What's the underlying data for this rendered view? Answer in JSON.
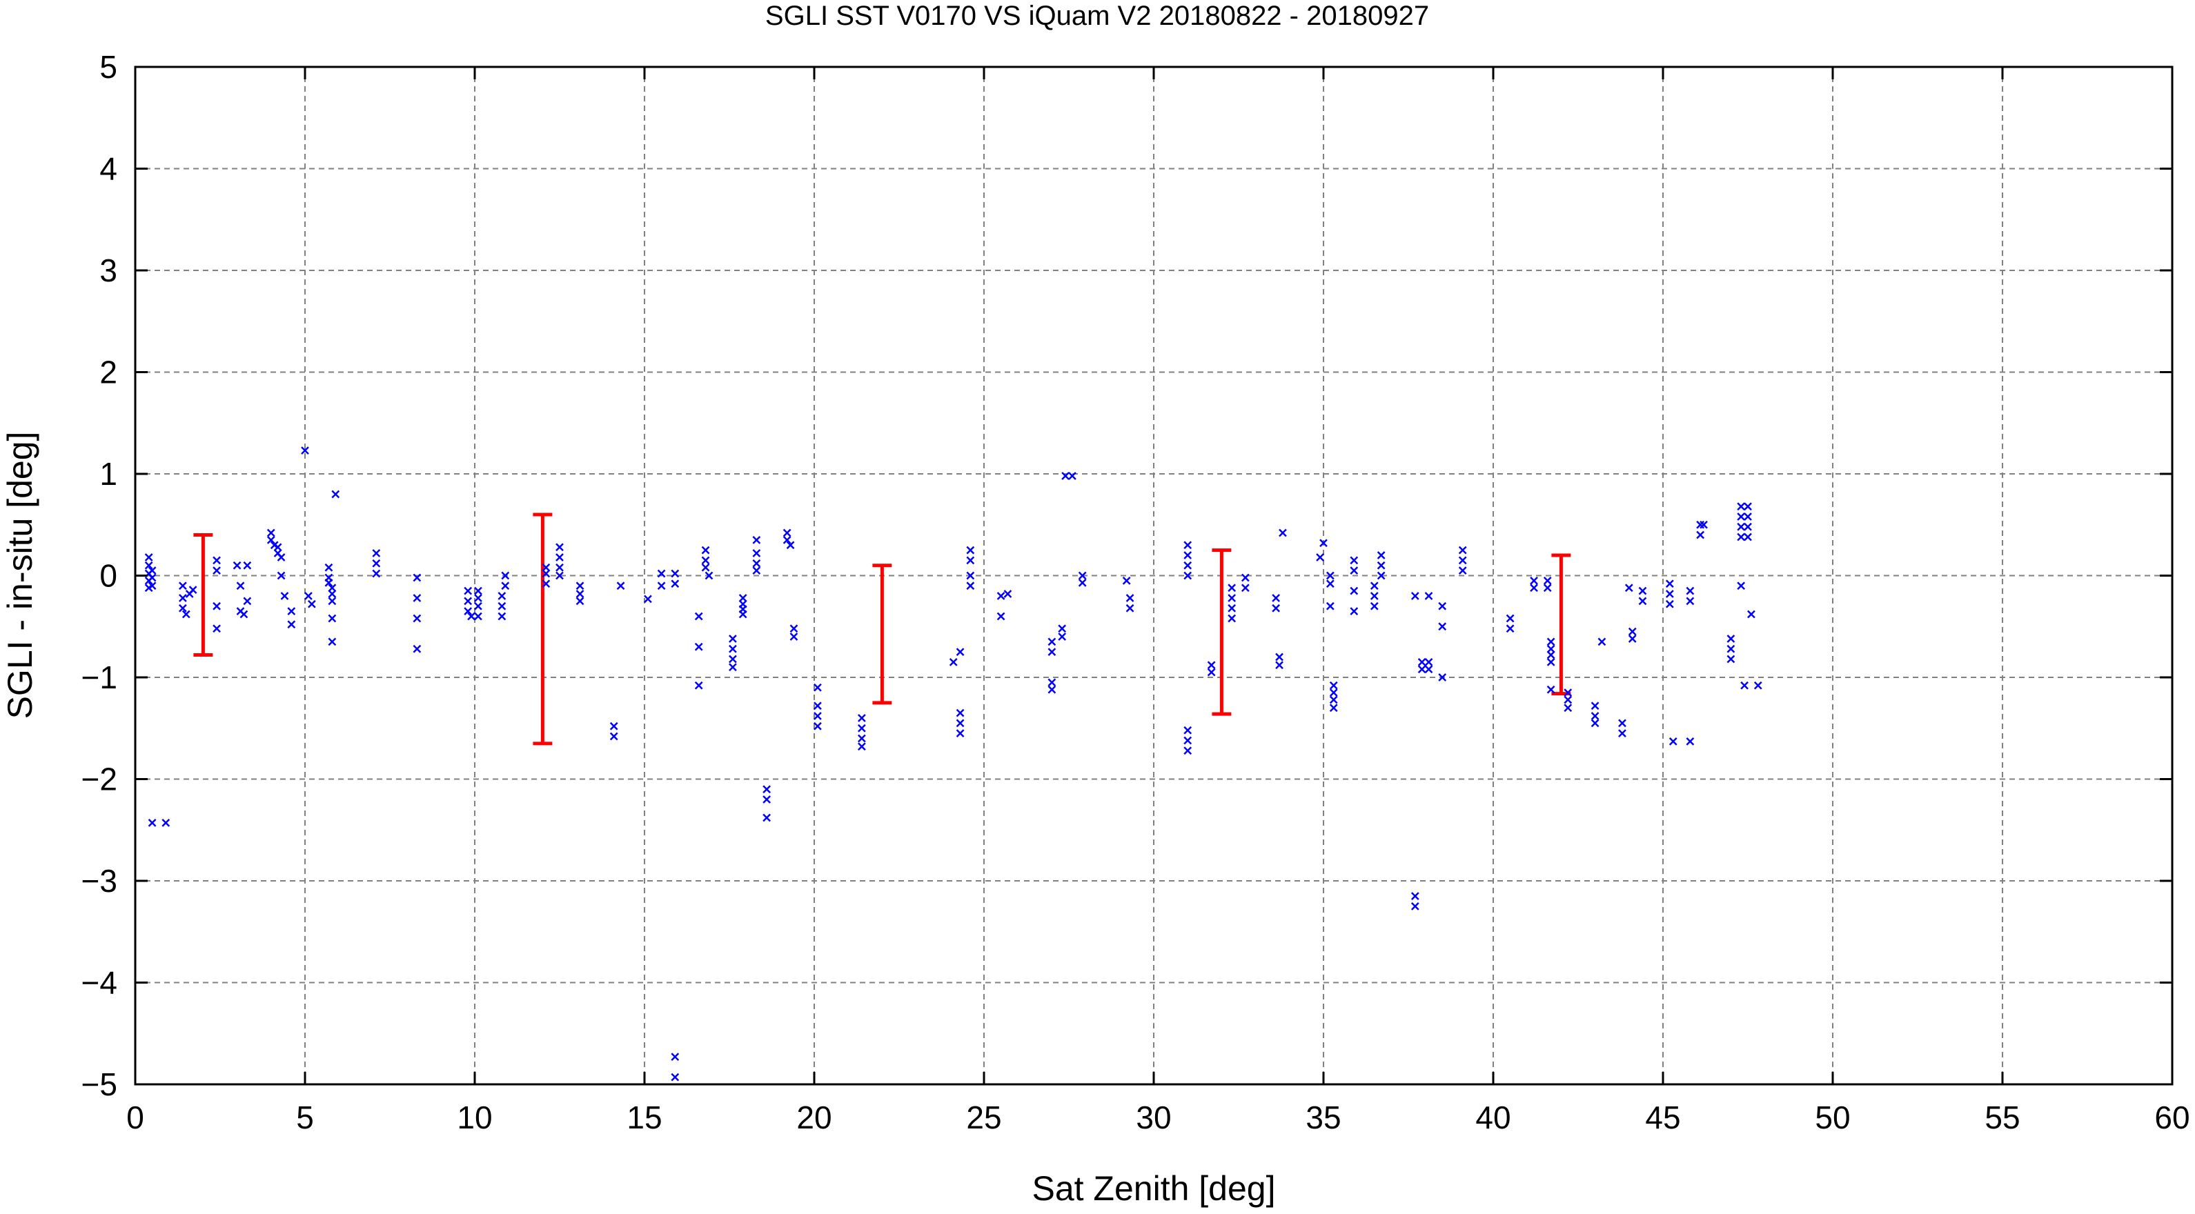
{
  "chart_data": {
    "type": "scatter",
    "title": "SGLI SST V0170 VS iQuam V2 20180822 - 20180927",
    "xlabel": "Sat Zenith [deg]",
    "ylabel": "SGLI - in-situ [deg]",
    "xlim": [
      0,
      60
    ],
    "ylim": [
      -5,
      5
    ],
    "xticks": [
      0,
      5,
      10,
      15,
      20,
      25,
      30,
      35,
      40,
      45,
      50,
      55,
      60
    ],
    "yticks": [
      -5,
      -4,
      -3,
      -2,
      -1,
      0,
      1,
      2,
      3,
      4,
      5
    ],
    "xtick_labels": [
      "0",
      "5",
      "10",
      "15",
      "20",
      "25",
      "30",
      "35",
      "40",
      "45",
      "50",
      "55",
      "60"
    ],
    "ytick_labels": [
      "−5",
      "−4",
      "−3",
      "−2",
      "−1",
      "0",
      "1",
      "2",
      "3",
      "4",
      "5"
    ],
    "grid": true,
    "colors": {
      "points": "#0000ff",
      "errorbars": "#ff0000",
      "grid": "#808080",
      "axes": "#000000"
    },
    "series": [
      {
        "marker": "x",
        "points": [
          [
            0.4,
            0.18
          ],
          [
            0.4,
            0.1
          ],
          [
            0.4,
            0.02
          ],
          [
            0.4,
            -0.05
          ],
          [
            0.4,
            -0.12
          ],
          [
            0.5,
            0.05
          ],
          [
            0.5,
            -0.02
          ],
          [
            0.5,
            -0.1
          ],
          [
            0.5,
            -2.43
          ],
          [
            0.9,
            -2.43
          ],
          [
            1.4,
            -0.1
          ],
          [
            1.4,
            -0.22
          ],
          [
            1.4,
            -0.32
          ],
          [
            1.5,
            -0.38
          ],
          [
            1.6,
            -0.18
          ],
          [
            1.7,
            -0.14
          ],
          [
            2.4,
            0.15
          ],
          [
            2.4,
            0.05
          ],
          [
            2.4,
            -0.3
          ],
          [
            2.4,
            -0.52
          ],
          [
            3.0,
            0.1
          ],
          [
            3.1,
            -0.1
          ],
          [
            3.1,
            -0.35
          ],
          [
            3.2,
            -0.38
          ],
          [
            3.3,
            0.1
          ],
          [
            3.3,
            -0.25
          ],
          [
            4.0,
            0.42
          ],
          [
            4.0,
            0.35
          ],
          [
            4.1,
            0.3
          ],
          [
            4.2,
            0.28
          ],
          [
            4.2,
            0.22
          ],
          [
            4.3,
            0.18
          ],
          [
            4.3,
            0.0
          ],
          [
            4.4,
            -0.2
          ],
          [
            4.6,
            -0.35
          ],
          [
            4.6,
            -0.48
          ],
          [
            5.0,
            1.23
          ],
          [
            5.1,
            -0.2
          ],
          [
            5.2,
            -0.28
          ],
          [
            5.7,
            0.08
          ],
          [
            5.7,
            -0.02
          ],
          [
            5.7,
            -0.07
          ],
          [
            5.8,
            -0.12
          ],
          [
            5.8,
            -0.18
          ],
          [
            5.8,
            -0.25
          ],
          [
            5.8,
            -0.42
          ],
          [
            5.8,
            -0.65
          ],
          [
            5.9,
            0.8
          ],
          [
            7.1,
            0.22
          ],
          [
            7.1,
            0.12
          ],
          [
            7.1,
            0.02
          ],
          [
            8.3,
            -0.02
          ],
          [
            8.3,
            -0.22
          ],
          [
            8.3,
            -0.42
          ],
          [
            8.3,
            -0.72
          ],
          [
            9.8,
            -0.15
          ],
          [
            9.8,
            -0.25
          ],
          [
            9.8,
            -0.35
          ],
          [
            9.9,
            -0.4
          ],
          [
            10.1,
            -0.15
          ],
          [
            10.1,
            -0.22
          ],
          [
            10.1,
            -0.3
          ],
          [
            10.1,
            -0.4
          ],
          [
            10.8,
            -0.2
          ],
          [
            10.8,
            -0.3
          ],
          [
            10.8,
            -0.4
          ],
          [
            10.9,
            0.0
          ],
          [
            10.9,
            -0.1
          ],
          [
            12.1,
            0.08
          ],
          [
            12.1,
            0.02
          ],
          [
            12.1,
            -0.08
          ],
          [
            12.5,
            0.28
          ],
          [
            12.5,
            0.18
          ],
          [
            12.5,
            0.08
          ],
          [
            12.5,
            0.0
          ],
          [
            13.1,
            -0.1
          ],
          [
            13.1,
            -0.18
          ],
          [
            13.1,
            -0.25
          ],
          [
            14.1,
            -1.48
          ],
          [
            14.1,
            -1.58
          ],
          [
            14.3,
            -0.1
          ],
          [
            15.1,
            -0.23
          ],
          [
            15.5,
            0.02
          ],
          [
            15.5,
            -0.1
          ],
          [
            15.9,
            0.02
          ],
          [
            15.9,
            -0.08
          ],
          [
            15.9,
            -4.73
          ],
          [
            15.9,
            -4.93
          ],
          [
            16.6,
            -0.4
          ],
          [
            16.6,
            -0.7
          ],
          [
            16.6,
            -1.08
          ],
          [
            16.8,
            0.25
          ],
          [
            16.8,
            0.15
          ],
          [
            16.8,
            0.08
          ],
          [
            16.9,
            0.0
          ],
          [
            17.6,
            -0.62
          ],
          [
            17.6,
            -0.72
          ],
          [
            17.6,
            -0.82
          ],
          [
            17.6,
            -0.9
          ],
          [
            17.9,
            -0.22
          ],
          [
            17.9,
            -0.28
          ],
          [
            17.9,
            -0.33
          ],
          [
            17.9,
            -0.38
          ],
          [
            18.3,
            0.35
          ],
          [
            18.3,
            0.22
          ],
          [
            18.3,
            0.12
          ],
          [
            18.3,
            0.05
          ],
          [
            18.6,
            -2.1
          ],
          [
            18.6,
            -2.2
          ],
          [
            18.6,
            -2.38
          ],
          [
            19.2,
            0.42
          ],
          [
            19.2,
            0.35
          ],
          [
            19.3,
            0.3
          ],
          [
            19.4,
            -0.52
          ],
          [
            19.4,
            -0.6
          ],
          [
            20.1,
            -1.1
          ],
          [
            20.1,
            -1.28
          ],
          [
            20.1,
            -1.38
          ],
          [
            20.1,
            -1.48
          ],
          [
            21.4,
            -1.4
          ],
          [
            21.4,
            -1.5
          ],
          [
            21.4,
            -1.6
          ],
          [
            21.4,
            -1.68
          ],
          [
            24.1,
            -0.85
          ],
          [
            24.3,
            -0.75
          ],
          [
            24.3,
            -1.35
          ],
          [
            24.3,
            -1.45
          ],
          [
            24.3,
            -1.55
          ],
          [
            24.6,
            0.25
          ],
          [
            24.6,
            0.15
          ],
          [
            24.6,
            0.0
          ],
          [
            24.6,
            -0.1
          ],
          [
            25.5,
            -0.2
          ],
          [
            25.5,
            -0.4
          ],
          [
            25.7,
            -0.18
          ],
          [
            27.0,
            -0.65
          ],
          [
            27.0,
            -0.75
          ],
          [
            27.0,
            -1.05
          ],
          [
            27.0,
            -1.12
          ],
          [
            27.3,
            -0.52
          ],
          [
            27.3,
            -0.6
          ],
          [
            27.4,
            0.98
          ],
          [
            27.6,
            0.98
          ],
          [
            27.9,
            0.0
          ],
          [
            27.9,
            -0.07
          ],
          [
            29.2,
            -0.05
          ],
          [
            29.3,
            -0.22
          ],
          [
            29.3,
            -0.32
          ],
          [
            31.0,
            0.3
          ],
          [
            31.0,
            0.2
          ],
          [
            31.0,
            0.1
          ],
          [
            31.0,
            0.0
          ],
          [
            31.0,
            -1.52
          ],
          [
            31.0,
            -1.62
          ],
          [
            31.0,
            -1.72
          ],
          [
            31.7,
            -0.88
          ],
          [
            31.7,
            -0.95
          ],
          [
            32.3,
            -0.12
          ],
          [
            32.3,
            -0.22
          ],
          [
            32.3,
            -0.32
          ],
          [
            32.3,
            -0.42
          ],
          [
            32.7,
            -0.02
          ],
          [
            32.7,
            -0.12
          ],
          [
            33.6,
            -0.22
          ],
          [
            33.6,
            -0.32
          ],
          [
            33.7,
            -0.8
          ],
          [
            33.7,
            -0.88
          ],
          [
            33.8,
            0.42
          ],
          [
            34.9,
            0.18
          ],
          [
            35.0,
            0.32
          ],
          [
            35.2,
            0.0
          ],
          [
            35.2,
            -0.08
          ],
          [
            35.2,
            -0.3
          ],
          [
            35.3,
            -1.08
          ],
          [
            35.3,
            -1.15
          ],
          [
            35.3,
            -1.22
          ],
          [
            35.3,
            -1.3
          ],
          [
            35.9,
            0.15
          ],
          [
            35.9,
            0.05
          ],
          [
            35.9,
            -0.15
          ],
          [
            35.9,
            -0.35
          ],
          [
            36.5,
            -0.1
          ],
          [
            36.5,
            -0.2
          ],
          [
            36.5,
            -0.3
          ],
          [
            36.7,
            0.2
          ],
          [
            36.7,
            0.1
          ],
          [
            36.7,
            0.0
          ],
          [
            37.7,
            -0.2
          ],
          [
            37.7,
            -3.15
          ],
          [
            37.7,
            -3.25
          ],
          [
            37.9,
            -0.85
          ],
          [
            37.9,
            -0.92
          ],
          [
            38.1,
            -0.85
          ],
          [
            38.1,
            -0.92
          ],
          [
            38.1,
            -0.2
          ],
          [
            38.5,
            -0.3
          ],
          [
            38.5,
            -0.5
          ],
          [
            38.5,
            -1.0
          ],
          [
            39.1,
            0.25
          ],
          [
            39.1,
            0.15
          ],
          [
            39.1,
            0.05
          ],
          [
            40.5,
            -0.42
          ],
          [
            40.5,
            -0.52
          ],
          [
            41.2,
            -0.05
          ],
          [
            41.2,
            -0.12
          ],
          [
            41.6,
            -0.05
          ],
          [
            41.6,
            -0.12
          ],
          [
            41.7,
            -0.65
          ],
          [
            41.7,
            -0.72
          ],
          [
            41.7,
            -0.78
          ],
          [
            41.7,
            -0.85
          ],
          [
            41.7,
            -1.12
          ],
          [
            42.2,
            -1.15
          ],
          [
            42.2,
            -1.22
          ],
          [
            42.2,
            -1.3
          ],
          [
            43.0,
            -1.28
          ],
          [
            43.0,
            -1.38
          ],
          [
            43.0,
            -1.45
          ],
          [
            43.2,
            -0.65
          ],
          [
            43.8,
            -1.45
          ],
          [
            43.8,
            -1.55
          ],
          [
            44.0,
            -0.12
          ],
          [
            44.1,
            -0.55
          ],
          [
            44.1,
            -0.62
          ],
          [
            44.4,
            -0.15
          ],
          [
            44.4,
            -0.25
          ],
          [
            45.2,
            -0.08
          ],
          [
            45.2,
            -0.18
          ],
          [
            45.2,
            -0.28
          ],
          [
            45.3,
            -1.63
          ],
          [
            45.8,
            -0.15
          ],
          [
            45.8,
            -0.25
          ],
          [
            45.8,
            -1.63
          ],
          [
            46.1,
            0.5
          ],
          [
            46.1,
            0.4
          ],
          [
            46.2,
            0.5
          ],
          [
            47.0,
            -0.62
          ],
          [
            47.0,
            -0.72
          ],
          [
            47.0,
            -0.82
          ],
          [
            47.3,
            0.68
          ],
          [
            47.3,
            0.58
          ],
          [
            47.3,
            0.48
          ],
          [
            47.3,
            0.38
          ],
          [
            47.3,
            -0.1
          ],
          [
            47.5,
            0.68
          ],
          [
            47.5,
            0.58
          ],
          [
            47.5,
            0.48
          ],
          [
            47.5,
            0.38
          ],
          [
            47.6,
            -0.38
          ],
          [
            47.4,
            -1.08
          ],
          [
            47.8,
            -1.08
          ]
        ]
      }
    ],
    "errorbars": [
      {
        "x": 2,
        "y_low": -0.78,
        "y_high": 0.4
      },
      {
        "x": 12,
        "y_low": -1.65,
        "y_high": 0.6
      },
      {
        "x": 22,
        "y_low": -1.25,
        "y_high": 0.1
      },
      {
        "x": 32,
        "y_low": -1.36,
        "y_high": 0.25
      },
      {
        "x": 42,
        "y_low": -1.16,
        "y_high": 0.2
      }
    ]
  }
}
